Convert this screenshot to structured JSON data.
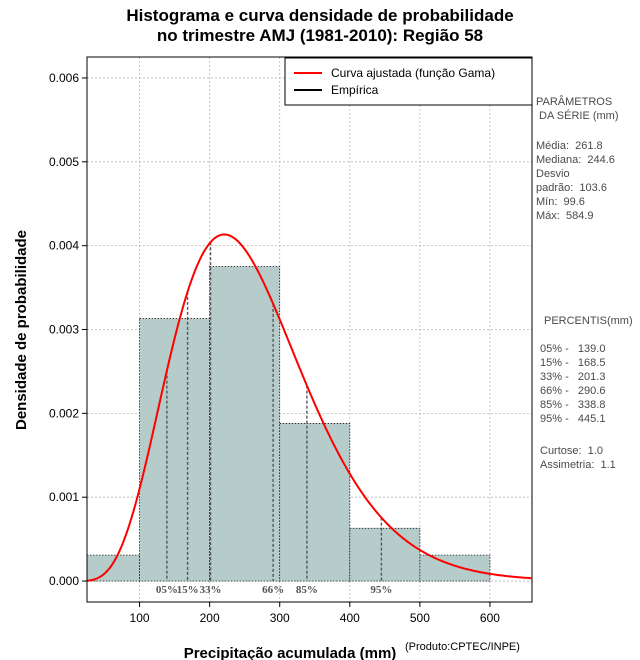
{
  "title_line1": "Histograma e curva densidade de probabilidade",
  "title_line2": "no trimestre AMJ (1981-2010): Região 58",
  "produto": "(Produto:CPTEC/INPE)",
  "colors": {
    "bar_fill": "#b5cccb",
    "curve": "#ff0000",
    "grid": "#b8b8b8"
  },
  "chart_data": {
    "type": "bar",
    "xlabel": "Precipitação acumulada (mm)",
    "ylabel": "Densidade de probabilidade",
    "xlim": [
      25,
      660
    ],
    "ylim": [
      -0.00025,
      0.00625
    ],
    "x_ticks": [
      100,
      200,
      300,
      400,
      500,
      600
    ],
    "y_ticks": [
      0.0,
      0.001,
      0.002,
      0.003,
      0.004,
      0.005,
      0.006
    ],
    "y_tick_labels": [
      "0.000",
      "0.001",
      "0.002",
      "0.003",
      "0.004",
      "0.005",
      "0.006"
    ],
    "grid": true,
    "legend_position": "top-right",
    "legend": [
      {
        "label": "Curva ajustada (função Gama)",
        "color": "#ff0000"
      },
      {
        "label": "Empírica",
        "color": "#000000"
      }
    ],
    "histogram": [
      {
        "from": 25,
        "to": 100,
        "density": 0.00031
      },
      {
        "from": 100,
        "to": 200,
        "density": 0.00313
      },
      {
        "from": 200,
        "to": 300,
        "density": 0.00375
      },
      {
        "from": 300,
        "to": 400,
        "density": 0.00188
      },
      {
        "from": 400,
        "to": 500,
        "density": 0.00063
      },
      {
        "from": 500,
        "to": 600,
        "density": 0.00031
      }
    ],
    "gamma_fit": {
      "shape": 6.4,
      "scale": 40.9
    },
    "percentiles": [
      {
        "label": "05%",
        "value": 139.0
      },
      {
        "label": "15%",
        "value": 168.5
      },
      {
        "label": "33%",
        "value": 201.3
      },
      {
        "label": "66%",
        "value": 290.6
      },
      {
        "label": "85%",
        "value": 338.8
      },
      {
        "label": "95%",
        "value": 445.1
      }
    ]
  },
  "side_panel": {
    "params_title_1": "PARÂMETROS",
    "params_title_2": " DA SÉRIE (mm)",
    "media": "Média:  261.8",
    "mediana": "Mediana:  244.6",
    "desvio_1": "Desvio",
    "desvio_2": "padrão:  103.6",
    "min": "Mín:  99.6",
    "max": "Máx:  584.9",
    "percentis_title": "PERCENTIS(mm)",
    "p05": "05% -   139.0",
    "p15": "15% -   168.5",
    "p33": "33% -   201.3",
    "p66": "66% -   290.6",
    "p85": "85% -   338.8",
    "p95": "95% -   445.1",
    "curtose": "Curtose:  1.0",
    "assimetria": "Assimetria:  1.1"
  }
}
